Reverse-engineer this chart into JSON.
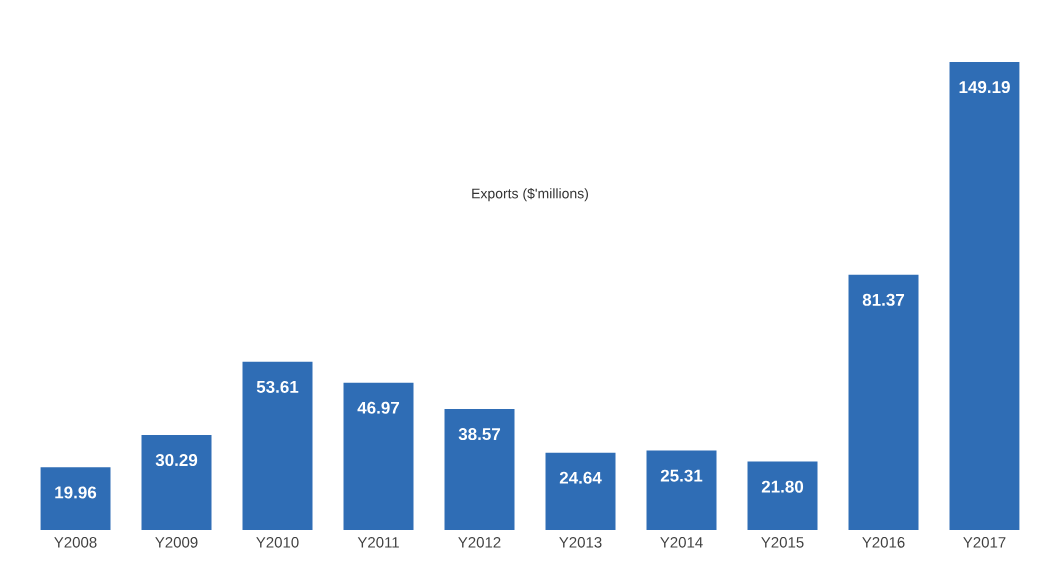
{
  "chart_data": {
    "type": "bar",
    "title": "Exports ($'millions)",
    "categories": [
      "Y2008",
      "Y2009",
      "Y2010",
      "Y2011",
      "Y2012",
      "Y2013",
      "Y2014",
      "Y2015",
      "Y2016",
      "Y2017"
    ],
    "values": [
      19.96,
      30.29,
      53.61,
      46.97,
      38.57,
      24.64,
      25.31,
      21.8,
      81.37,
      149.19
    ],
    "value_labels": [
      "19.96",
      "30.29",
      "53.61",
      "46.97",
      "38.57",
      "24.64",
      "25.31",
      "21.80",
      "81.37",
      "149.19"
    ],
    "color": "#2f6db5"
  }
}
